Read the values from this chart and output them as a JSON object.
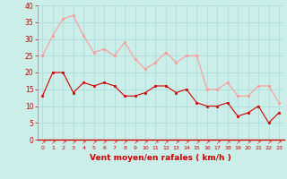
{
  "x": [
    0,
    1,
    2,
    3,
    4,
    5,
    6,
    7,
    8,
    9,
    10,
    11,
    12,
    13,
    14,
    15,
    16,
    17,
    18,
    19,
    20,
    21,
    22,
    23
  ],
  "wind_avg": [
    13,
    20,
    20,
    14,
    17,
    16,
    17,
    16,
    13,
    13,
    14,
    16,
    16,
    14,
    15,
    11,
    10,
    10,
    11,
    7,
    8,
    10,
    5,
    8
  ],
  "wind_gust": [
    25,
    31,
    36,
    37,
    31,
    26,
    27,
    25,
    29,
    24,
    21,
    23,
    26,
    23,
    25,
    25,
    15,
    15,
    17,
    13,
    13,
    16,
    16,
    11
  ],
  "avg_color": "#cc0000",
  "gust_color": "#ff9999",
  "bg_color": "#cceee8",
  "grid_color": "#aadddd",
  "xlabel": "Vent moyen/en rafales ( km/h )",
  "xlabel_color": "#cc0000",
  "tick_color": "#cc0000",
  "ylim": [
    0,
    40
  ],
  "yticks": [
    0,
    5,
    10,
    15,
    20,
    25,
    30,
    35,
    40
  ],
  "arrow_symbol": "↗"
}
